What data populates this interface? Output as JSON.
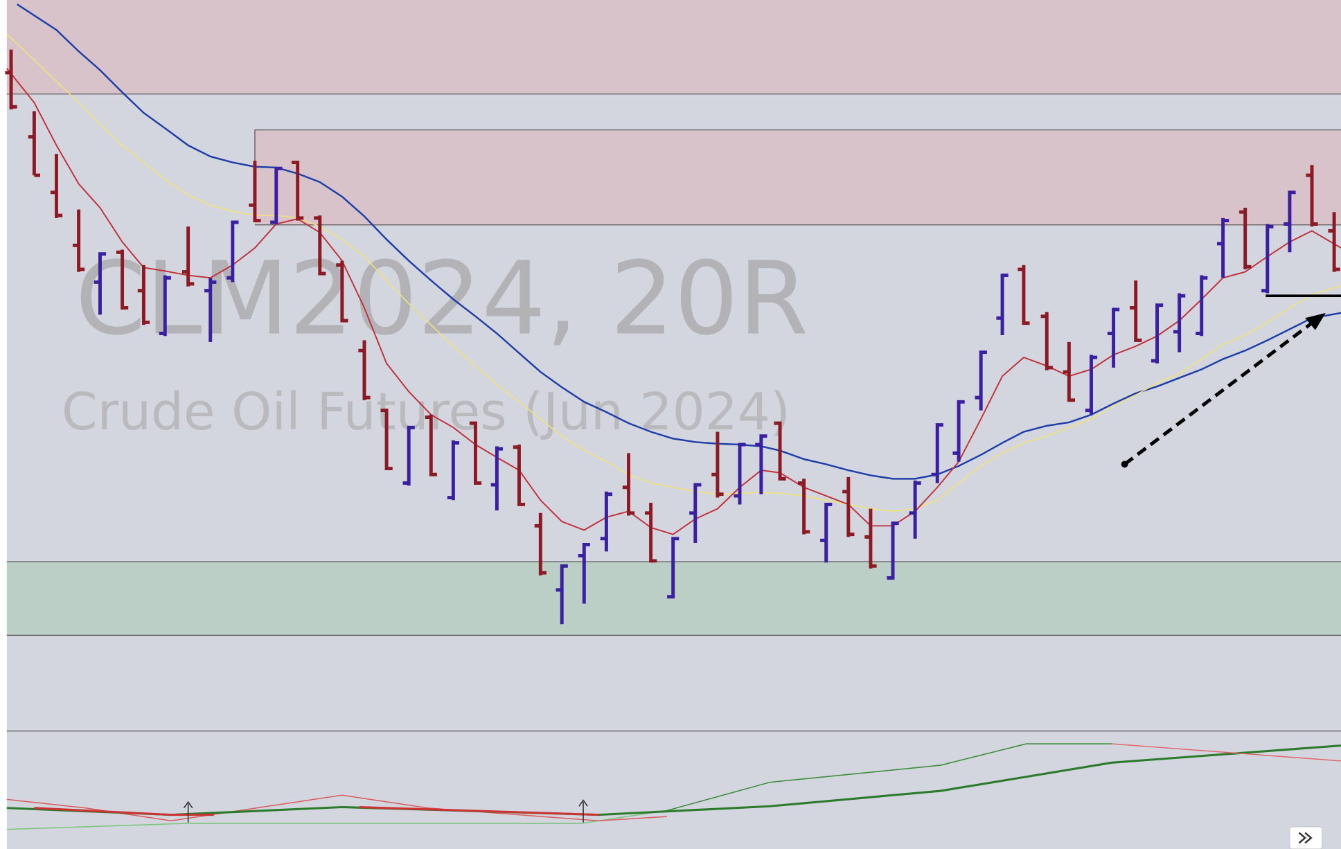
{
  "watermark": {
    "symbol": "CLM2024, 20R",
    "description": "Crude Oil Futures (Jun 2024)"
  }
}
